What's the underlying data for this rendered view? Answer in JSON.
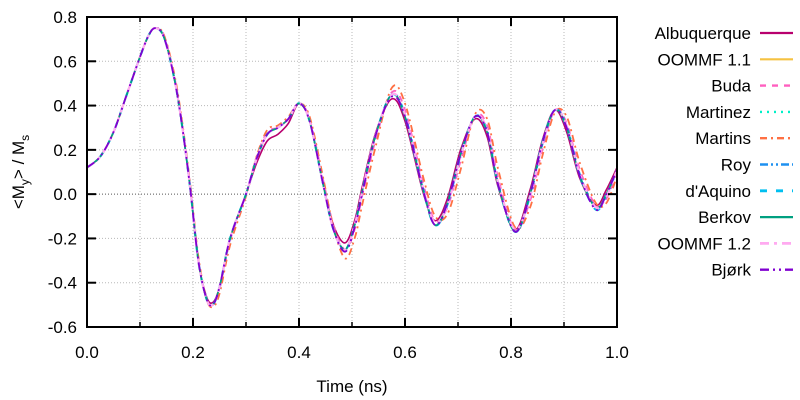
{
  "chart_data": {
    "type": "line",
    "title": "",
    "xlabel": "Time (ns)",
    "ylabel": "<My> / Ms",
    "ylabel_parts": {
      "open": "<M",
      "sub1": "y",
      "mid": "> / M",
      "sub2": "s"
    },
    "xlim": [
      0.0,
      1.0
    ],
    "ylim": [
      -0.6,
      0.8
    ],
    "xticks": [
      "0.0",
      "0.2",
      "0.4",
      "0.6",
      "0.8",
      "1.0"
    ],
    "xtick_values": [
      0.0,
      0.2,
      0.4,
      0.6,
      0.8,
      1.0
    ],
    "xminor_values": [
      0.1,
      0.3,
      0.5,
      0.7,
      0.9
    ],
    "yticks": [
      "0.8",
      "0.6",
      "0.4",
      "0.2",
      "0.0",
      "-0.2",
      "-0.4",
      "-0.6"
    ],
    "ytick_values": [
      0.8,
      0.6,
      0.4,
      0.2,
      0.0,
      -0.2,
      -0.4,
      -0.6
    ],
    "grid": true,
    "legend_position": "right",
    "x": [
      0.0,
      0.025,
      0.05,
      0.075,
      0.1,
      0.115,
      0.128,
      0.145,
      0.165,
      0.18,
      0.195,
      0.21,
      0.225,
      0.237,
      0.25,
      0.27,
      0.3,
      0.32,
      0.34,
      0.36,
      0.38,
      0.4,
      0.42,
      0.445,
      0.465,
      0.487,
      0.505,
      0.52,
      0.545,
      0.575,
      0.6,
      0.635,
      0.657,
      0.68,
      0.705,
      0.732,
      0.755,
      0.776,
      0.808,
      0.836,
      0.86,
      0.883,
      0.905,
      0.93,
      0.96,
      0.98,
      1.0
    ],
    "series": [
      {
        "name": "Albuquerque",
        "color": "#b8006e",
        "dash": "",
        "width": 1.6,
        "values": [
          0.12,
          0.17,
          0.28,
          0.45,
          0.62,
          0.71,
          0.75,
          0.71,
          0.52,
          0.3,
          0.02,
          -0.3,
          -0.46,
          -0.49,
          -0.42,
          -0.2,
          0.0,
          0.14,
          0.24,
          0.27,
          0.32,
          0.41,
          0.33,
          0.05,
          -0.14,
          -0.22,
          -0.12,
          0.04,
          0.28,
          0.43,
          0.33,
          0.0,
          -0.12,
          -0.02,
          0.2,
          0.34,
          0.26,
          0.03,
          -0.16,
          0.02,
          0.25,
          0.38,
          0.28,
          0.07,
          -0.05,
          0.02,
          0.12
        ]
      },
      {
        "name": "OOMMF 1.1",
        "color": "#f5c242",
        "dash": "",
        "width": 1.6,
        "values": [
          0.12,
          0.17,
          0.28,
          0.45,
          0.62,
          0.71,
          0.75,
          0.71,
          0.52,
          0.3,
          0.02,
          -0.3,
          -0.47,
          -0.5,
          -0.42,
          -0.2,
          0.0,
          0.16,
          0.27,
          0.3,
          0.34,
          0.41,
          0.33,
          0.05,
          -0.16,
          -0.25,
          -0.14,
          0.02,
          0.27,
          0.45,
          0.35,
          0.01,
          -0.14,
          -0.04,
          0.18,
          0.35,
          0.28,
          0.04,
          -0.17,
          0.0,
          0.24,
          0.38,
          0.3,
          0.08,
          -0.06,
          0.0,
          0.11
        ]
      },
      {
        "name": "Buda",
        "color": "#ff5fbf",
        "dash": "6,6",
        "width": 1.8,
        "values": [
          0.12,
          0.17,
          0.28,
          0.45,
          0.62,
          0.71,
          0.75,
          0.72,
          0.53,
          0.31,
          0.03,
          -0.29,
          -0.47,
          -0.5,
          -0.43,
          -0.21,
          0.0,
          0.17,
          0.28,
          0.3,
          0.34,
          0.41,
          0.34,
          0.07,
          -0.14,
          -0.25,
          -0.16,
          0.0,
          0.25,
          0.46,
          0.38,
          0.04,
          -0.12,
          -0.06,
          0.15,
          0.35,
          0.31,
          0.07,
          -0.16,
          -0.03,
          0.21,
          0.38,
          0.32,
          0.11,
          -0.05,
          -0.02,
          0.1
        ]
      },
      {
        "name": "Martinez",
        "color": "#00f0c8",
        "dash": "2,5",
        "width": 1.8,
        "values": [
          0.12,
          0.17,
          0.28,
          0.45,
          0.62,
          0.71,
          0.75,
          0.71,
          0.52,
          0.3,
          0.02,
          -0.3,
          -0.47,
          -0.5,
          -0.42,
          -0.2,
          0.0,
          0.16,
          0.27,
          0.3,
          0.34,
          0.41,
          0.33,
          0.05,
          -0.16,
          -0.25,
          -0.14,
          0.02,
          0.27,
          0.45,
          0.35,
          0.01,
          -0.14,
          -0.04,
          0.18,
          0.35,
          0.28,
          0.04,
          -0.17,
          0.0,
          0.24,
          0.38,
          0.3,
          0.08,
          -0.06,
          0.0,
          0.11
        ]
      },
      {
        "name": "Martins",
        "color": "#ff7043",
        "dash": "7,4,2,4",
        "width": 1.8,
        "values": [
          0.12,
          0.17,
          0.28,
          0.45,
          0.62,
          0.71,
          0.75,
          0.72,
          0.54,
          0.32,
          0.04,
          -0.28,
          -0.47,
          -0.51,
          -0.45,
          -0.23,
          -0.01,
          0.17,
          0.29,
          0.31,
          0.35,
          0.41,
          0.35,
          0.08,
          -0.15,
          -0.29,
          -0.2,
          -0.04,
          0.22,
          0.48,
          0.41,
          0.07,
          -0.1,
          -0.09,
          0.11,
          0.36,
          0.34,
          0.11,
          -0.15,
          -0.06,
          0.18,
          0.37,
          0.35,
          0.14,
          -0.04,
          -0.04,
          0.08
        ]
      },
      {
        "name": "Roy",
        "color": "#1e90f0",
        "dash": "8,3,2,3,2,3",
        "width": 1.8,
        "values": [
          0.12,
          0.17,
          0.28,
          0.45,
          0.62,
          0.71,
          0.75,
          0.71,
          0.52,
          0.3,
          0.02,
          -0.3,
          -0.47,
          -0.5,
          -0.42,
          -0.2,
          0.0,
          0.16,
          0.27,
          0.3,
          0.34,
          0.41,
          0.33,
          0.05,
          -0.16,
          -0.25,
          -0.14,
          0.02,
          0.27,
          0.45,
          0.36,
          0.02,
          -0.14,
          -0.05,
          0.17,
          0.35,
          0.29,
          0.05,
          -0.17,
          -0.01,
          0.23,
          0.38,
          0.31,
          0.09,
          -0.06,
          -0.01,
          0.11
        ]
      },
      {
        "name": "d'Aquino",
        "color": "#00bff0",
        "dash": "7,9",
        "width": 2.2,
        "values": [
          0.12,
          0.17,
          0.28,
          0.45,
          0.62,
          0.71,
          0.75,
          0.71,
          0.52,
          0.3,
          0.02,
          -0.3,
          -0.47,
          -0.5,
          -0.42,
          -0.2,
          0.0,
          0.16,
          0.27,
          0.3,
          0.34,
          0.41,
          0.33,
          0.05,
          -0.16,
          -0.25,
          -0.14,
          0.02,
          0.27,
          0.45,
          0.35,
          0.01,
          -0.14,
          -0.04,
          0.18,
          0.35,
          0.28,
          0.04,
          -0.17,
          0.0,
          0.24,
          0.38,
          0.3,
          0.08,
          -0.07,
          0.0,
          0.11
        ]
      },
      {
        "name": "Berkov",
        "color": "#00a080",
        "dash": "",
        "width": 1.6,
        "values": [
          0.12,
          0.17,
          0.28,
          0.45,
          0.62,
          0.71,
          0.75,
          0.71,
          0.52,
          0.3,
          0.02,
          -0.3,
          -0.47,
          -0.5,
          -0.42,
          -0.2,
          0.0,
          0.16,
          0.27,
          0.3,
          0.34,
          0.41,
          0.33,
          0.05,
          -0.16,
          -0.25,
          -0.14,
          0.02,
          0.27,
          0.45,
          0.35,
          0.01,
          -0.14,
          -0.04,
          0.18,
          0.35,
          0.28,
          0.04,
          -0.17,
          0.0,
          0.24,
          0.38,
          0.3,
          0.08,
          -0.06,
          0.0,
          0.11
        ]
      },
      {
        "name": "OOMMF 1.2",
        "color": "#ffaaf0",
        "dash": "9,5,3,5",
        "width": 2.2,
        "values": [
          0.12,
          0.17,
          0.28,
          0.45,
          0.62,
          0.71,
          0.75,
          0.71,
          0.52,
          0.3,
          0.02,
          -0.3,
          -0.47,
          -0.5,
          -0.42,
          -0.2,
          0.0,
          0.16,
          0.27,
          0.3,
          0.34,
          0.41,
          0.33,
          0.05,
          -0.16,
          -0.25,
          -0.14,
          0.02,
          0.27,
          0.45,
          0.36,
          0.02,
          -0.13,
          -0.05,
          0.17,
          0.35,
          0.29,
          0.05,
          -0.16,
          -0.01,
          0.23,
          0.38,
          0.31,
          0.09,
          -0.06,
          -0.01,
          0.11
        ]
      },
      {
        "name": "Bjørk",
        "color": "#8000d0",
        "dash": "9,4,2,4,2,4",
        "width": 1.8,
        "values": [
          0.12,
          0.17,
          0.28,
          0.45,
          0.62,
          0.71,
          0.75,
          0.71,
          0.52,
          0.3,
          0.02,
          -0.3,
          -0.47,
          -0.5,
          -0.42,
          -0.2,
          0.0,
          0.16,
          0.27,
          0.3,
          0.34,
          0.41,
          0.33,
          0.05,
          -0.16,
          -0.26,
          -0.15,
          0.01,
          0.27,
          0.44,
          0.35,
          0.01,
          -0.14,
          -0.04,
          0.18,
          0.35,
          0.28,
          0.04,
          -0.17,
          0.0,
          0.24,
          0.38,
          0.3,
          0.08,
          -0.07,
          0.0,
          0.11
        ]
      }
    ]
  }
}
